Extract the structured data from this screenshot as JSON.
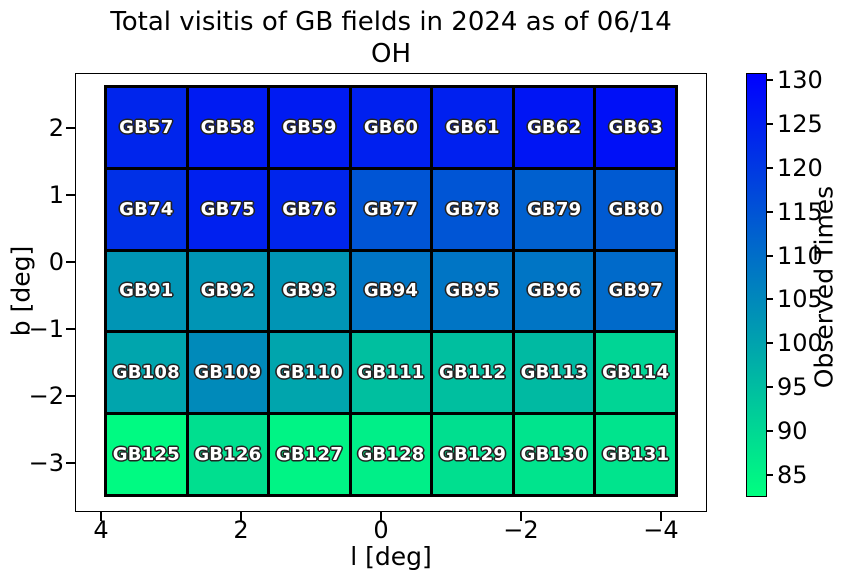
{
  "chart_data": {
    "type": "heatmap",
    "title_line1": "Total visitis of GB fields in 2024 as of 06/14",
    "title_line2": "OH",
    "xlabel": "l [deg]",
    "ylabel": "b [deg]",
    "x_tick_labels": [
      "4",
      "2",
      "0",
      "−2",
      "−4"
    ],
    "y_tick_labels": [
      "2",
      "1",
      "0",
      "−1",
      "−2",
      "−3"
    ],
    "x_axis_inverted": true,
    "grid": {
      "n_rows": 5,
      "n_cols": 7
    },
    "colorbar": {
      "label": "Observed Times",
      "tick_labels": [
        "130",
        "125",
        "120",
        "115",
        "110",
        "105",
        "100",
        "95",
        "90",
        "85"
      ],
      "tick_values": [
        130,
        125,
        120,
        115,
        110,
        105,
        100,
        95,
        90,
        85
      ],
      "axis_range": [
        82.5,
        130.8
      ],
      "colormap": "winter",
      "top_color": "#0000ff",
      "bottom_color": "#00ff80"
    },
    "rows": [
      {
        "fields": [
          {
            "label": "GB57",
            "value": 124,
            "color": "#0025ec"
          },
          {
            "label": "GB58",
            "value": 126,
            "color": "#001bf2"
          },
          {
            "label": "GB59",
            "value": 126,
            "color": "#001bf2"
          },
          {
            "label": "GB60",
            "value": 125,
            "color": "#0020ef"
          },
          {
            "label": "GB61",
            "value": 125,
            "color": "#0020ef"
          },
          {
            "label": "GB62",
            "value": 127,
            "color": "#0015f4"
          },
          {
            "label": "GB63",
            "value": 128,
            "color": "#0010f7"
          }
        ]
      },
      {
        "fields": [
          {
            "label": "GB74",
            "value": 122,
            "color": "#0030e7"
          },
          {
            "label": "GB75",
            "value": 125,
            "color": "#0020ef"
          },
          {
            "label": "GB76",
            "value": 124,
            "color": "#0025ec"
          },
          {
            "label": "GB77",
            "value": 115,
            "color": "#0055d5"
          },
          {
            "label": "GB78",
            "value": 115,
            "color": "#0055d5"
          },
          {
            "label": "GB79",
            "value": 113,
            "color": "#0060cf"
          },
          {
            "label": "GB80",
            "value": 114,
            "color": "#005ad2"
          }
        ]
      },
      {
        "fields": [
          {
            "label": "GB91",
            "value": 103,
            "color": "#0095b5"
          },
          {
            "label": "GB92",
            "value": 103,
            "color": "#0095b5"
          },
          {
            "label": "GB93",
            "value": 103,
            "color": "#0095b5"
          },
          {
            "label": "GB94",
            "value": 109,
            "color": "#0075c5"
          },
          {
            "label": "GB95",
            "value": 109,
            "color": "#0075c5"
          },
          {
            "label": "GB96",
            "value": 109,
            "color": "#0075c5"
          },
          {
            "label": "GB97",
            "value": 111,
            "color": "#006aca"
          }
        ]
      },
      {
        "fields": [
          {
            "label": "GB108",
            "value": 100,
            "color": "#00a5ad"
          },
          {
            "label": "GB109",
            "value": 105,
            "color": "#008aba"
          },
          {
            "label": "GB110",
            "value": 100,
            "color": "#00a5ad"
          },
          {
            "label": "GB111",
            "value": 95,
            "color": "#00bf9f"
          },
          {
            "label": "GB112",
            "value": 95,
            "color": "#00bf9f"
          },
          {
            "label": "GB113",
            "value": 96,
            "color": "#00baa2"
          },
          {
            "label": "GB114",
            "value": 91,
            "color": "#00d595"
          }
        ]
      },
      {
        "fields": [
          {
            "label": "GB125",
            "value": 84,
            "color": "#00fa82"
          },
          {
            "label": "GB126",
            "value": 89,
            "color": "#00df8f"
          },
          {
            "label": "GB127",
            "value": 85,
            "color": "#00f485"
          },
          {
            "label": "GB128",
            "value": 86,
            "color": "#00ef88"
          },
          {
            "label": "GB129",
            "value": 89,
            "color": "#00df8f"
          },
          {
            "label": "GB130",
            "value": 88,
            "color": "#00e48d"
          },
          {
            "label": "GB131",
            "value": 88,
            "color": "#00e48d"
          }
        ]
      }
    ]
  }
}
